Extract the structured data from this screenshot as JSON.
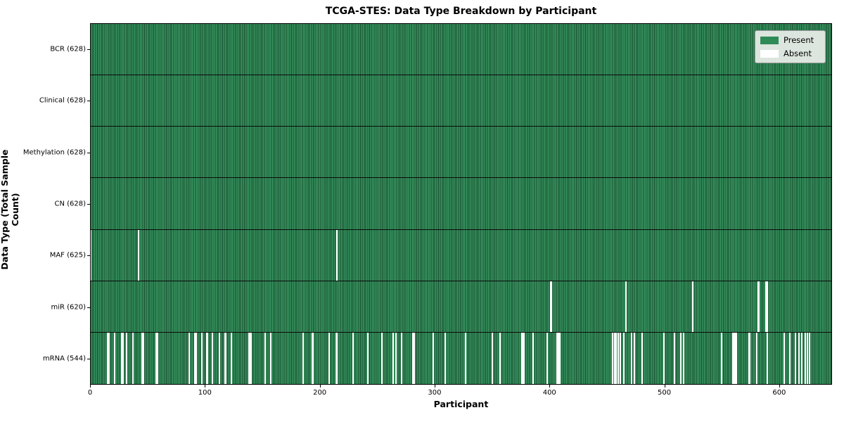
{
  "title": "TCGA-STES: Data Type Breakdown by Participant",
  "legend": {
    "entries": [
      {
        "label": "Present",
        "color": "#2e8b57"
      },
      {
        "label": "Absent",
        "color": "#ffffff"
      }
    ]
  },
  "colors": {
    "present_fill": "#2e8b57",
    "present_bar_light": "#379560",
    "bar_edge_dark": "#17492d",
    "absent_fill": "#ffffff",
    "row_divider": "#0a0a0a",
    "plot_border": "#000000",
    "legend_background": "#eceFec",
    "text": "#000000"
  },
  "chart_data": {
    "type": "heatmap",
    "title": "TCGA-STES: Data Type Breakdown by Participant",
    "xlabel": "Participant",
    "ylabel": "Data Type (Total Sample Count)",
    "legend": [
      "Present",
      "Absent"
    ],
    "legend_position": "upper right",
    "grid": false,
    "n_participants": 628,
    "x_ticks": [
      0,
      100,
      200,
      300,
      400,
      500,
      600
    ],
    "xlim": [
      0,
      646
    ],
    "rows": [
      {
        "label": "BCR (628)",
        "data_type": "BCR",
        "present_count": 628,
        "absent_count": 0,
        "absent_participants": []
      },
      {
        "label": "Clinical (628)",
        "data_type": "Clinical",
        "present_count": 628,
        "absent_count": 0,
        "absent_participants": []
      },
      {
        "label": "Methylation (628)",
        "data_type": "Methylation",
        "present_count": 628,
        "absent_count": 0,
        "absent_participants": []
      },
      {
        "label": "CN (628)",
        "data_type": "CN",
        "present_count": 628,
        "absent_count": 0,
        "absent_participants": []
      },
      {
        "label": "MAF (625)",
        "data_type": "MAF",
        "present_count": 625,
        "absent_count": 3,
        "absent_participants": [
          0,
          42,
          215
        ]
      },
      {
        "label": "miR (620)",
        "data_type": "miR",
        "present_count": 620,
        "absent_count": 8,
        "absent_participants": [
          401,
          402,
          467,
          525,
          582,
          583,
          589,
          590
        ]
      },
      {
        "label": "mRNA (544)",
        "data_type": "mRNA",
        "present_count": 544,
        "absent_count": 84,
        "absent_participants": [
          15,
          16,
          21,
          27,
          28,
          31,
          37,
          45,
          46,
          57,
          58,
          86,
          91,
          92,
          97,
          101,
          102,
          106,
          112,
          117,
          118,
          123,
          138,
          139,
          140,
          152,
          157,
          185,
          193,
          194,
          208,
          214,
          215,
          229,
          242,
          254,
          264,
          266,
          271,
          281,
          282,
          299,
          309,
          327,
          350,
          357,
          376,
          377,
          378,
          386,
          398,
          407,
          408,
          409,
          455,
          457,
          458,
          460,
          462,
          465,
          472,
          474,
          481,
          500,
          509,
          515,
          517,
          550,
          560,
          561,
          562,
          563,
          574,
          575,
          581,
          590,
          605,
          610,
          615,
          618,
          620,
          623,
          625,
          627
        ]
      }
    ]
  }
}
